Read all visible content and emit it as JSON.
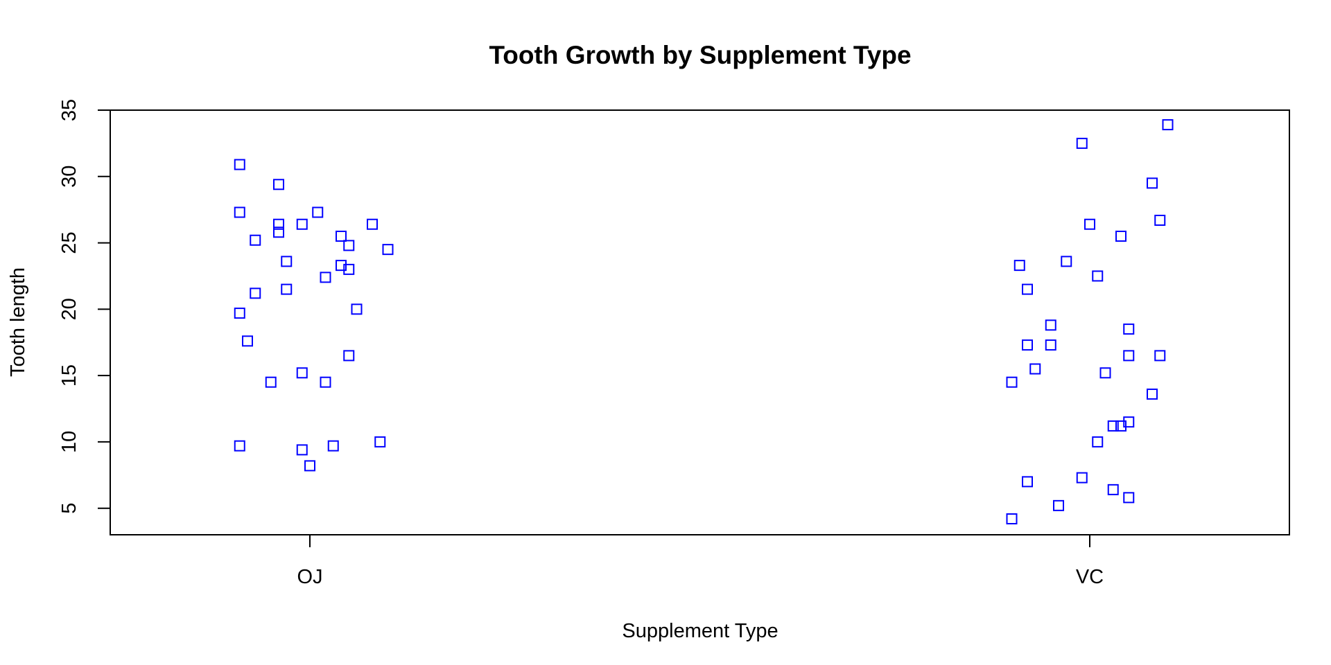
{
  "chart_data": {
    "type": "scatter",
    "title": "Tooth Growth by Supplement Type",
    "xlabel": "Supplement Type",
    "ylabel": "Tooth length",
    "categories": [
      "OJ",
      "VC"
    ],
    "ylim": [
      3,
      35
    ],
    "yticks": [
      5,
      10,
      15,
      20,
      25,
      30,
      35
    ],
    "marker": "open-square",
    "point_color": "#0000ff",
    "grid": false,
    "series": [
      {
        "category": "OJ",
        "points": [
          {
            "jitter": -0.09,
            "y": 30.9
          },
          {
            "jitter": -0.04,
            "y": 29.4
          },
          {
            "jitter": -0.09,
            "y": 27.3
          },
          {
            "jitter": 0.01,
            "y": 27.3
          },
          {
            "jitter": -0.04,
            "y": 26.4
          },
          {
            "jitter": -0.01,
            "y": 26.4
          },
          {
            "jitter": 0.08,
            "y": 26.4
          },
          {
            "jitter": -0.04,
            "y": 25.8
          },
          {
            "jitter": 0.04,
            "y": 25.5
          },
          {
            "jitter": -0.07,
            "y": 25.2
          },
          {
            "jitter": 0.05,
            "y": 24.8
          },
          {
            "jitter": 0.1,
            "y": 24.5
          },
          {
            "jitter": -0.03,
            "y": 23.6
          },
          {
            "jitter": 0.04,
            "y": 23.3
          },
          {
            "jitter": 0.05,
            "y": 23.0
          },
          {
            "jitter": 0.02,
            "y": 22.4
          },
          {
            "jitter": -0.03,
            "y": 21.5
          },
          {
            "jitter": -0.07,
            "y": 21.2
          },
          {
            "jitter": 0.06,
            "y": 20.0
          },
          {
            "jitter": -0.09,
            "y": 19.7
          },
          {
            "jitter": -0.08,
            "y": 17.6
          },
          {
            "jitter": 0.05,
            "y": 16.5
          },
          {
            "jitter": -0.01,
            "y": 15.2
          },
          {
            "jitter": -0.05,
            "y": 14.5
          },
          {
            "jitter": 0.02,
            "y": 14.5
          },
          {
            "jitter": 0.09,
            "y": 10.0
          },
          {
            "jitter": -0.09,
            "y": 9.7
          },
          {
            "jitter": 0.03,
            "y": 9.7
          },
          {
            "jitter": -0.01,
            "y": 9.4
          },
          {
            "jitter": 0.0,
            "y": 8.2
          }
        ]
      },
      {
        "category": "VC",
        "points": [
          {
            "jitter": 0.1,
            "y": 33.9
          },
          {
            "jitter": -0.01,
            "y": 32.5
          },
          {
            "jitter": 0.08,
            "y": 29.5
          },
          {
            "jitter": 0.09,
            "y": 26.7
          },
          {
            "jitter": 0.0,
            "y": 26.4
          },
          {
            "jitter": 0.04,
            "y": 25.5
          },
          {
            "jitter": -0.03,
            "y": 23.6
          },
          {
            "jitter": -0.09,
            "y": 23.3
          },
          {
            "jitter": 0.01,
            "y": 22.5
          },
          {
            "jitter": -0.08,
            "y": 21.5
          },
          {
            "jitter": -0.05,
            "y": 18.8
          },
          {
            "jitter": 0.05,
            "y": 18.5
          },
          {
            "jitter": -0.08,
            "y": 17.3
          },
          {
            "jitter": -0.05,
            "y": 17.3
          },
          {
            "jitter": 0.05,
            "y": 16.5
          },
          {
            "jitter": 0.09,
            "y": 16.5
          },
          {
            "jitter": -0.07,
            "y": 15.5
          },
          {
            "jitter": 0.02,
            "y": 15.2
          },
          {
            "jitter": -0.1,
            "y": 14.5
          },
          {
            "jitter": 0.08,
            "y": 13.6
          },
          {
            "jitter": 0.05,
            "y": 11.5
          },
          {
            "jitter": 0.03,
            "y": 11.2
          },
          {
            "jitter": 0.04,
            "y": 11.2
          },
          {
            "jitter": 0.01,
            "y": 10.0
          },
          {
            "jitter": -0.01,
            "y": 7.3
          },
          {
            "jitter": -0.08,
            "y": 7.0
          },
          {
            "jitter": 0.03,
            "y": 6.4
          },
          {
            "jitter": 0.05,
            "y": 5.8
          },
          {
            "jitter": -0.04,
            "y": 5.2
          },
          {
            "jitter": -0.1,
            "y": 4.2
          }
        ]
      }
    ]
  }
}
